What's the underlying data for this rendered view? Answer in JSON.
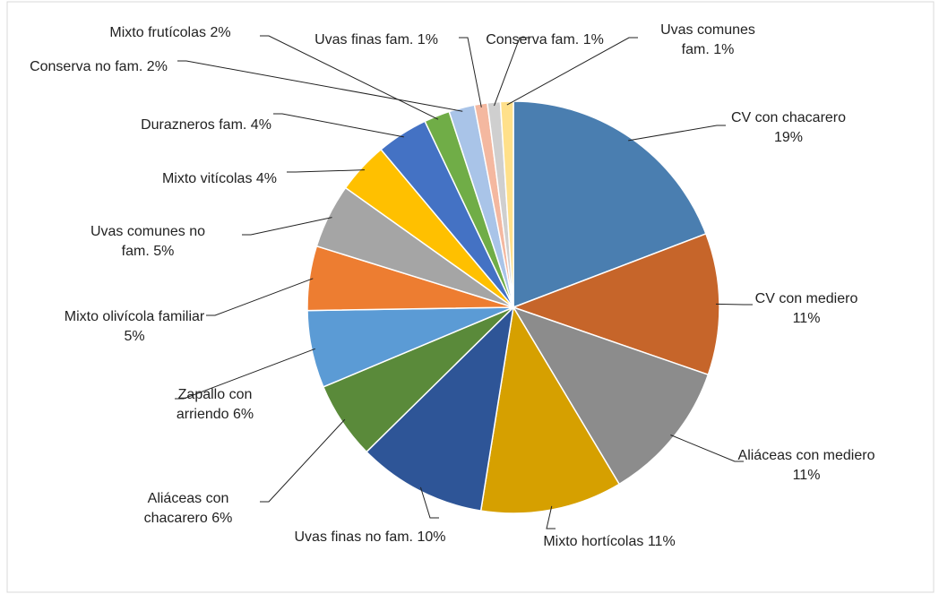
{
  "chart_data": {
    "type": "pie",
    "categories": [
      "CV con chacarero",
      "CV con mediero",
      "Aliáceas con mediero",
      "Mixto hortícolas",
      "Uvas finas no fam.",
      "Aliáceas con chacarero",
      "Zapallo con arriendo",
      "Mixto olivícola familiar",
      "Uvas comunes no fam.",
      "Mixto vitícolas",
      "Durazneros fam.",
      "Mixto frutícolas",
      "Conserva no fam.",
      "Uvas finas fam.",
      "Conserva fam.",
      "Uvas comunes fam."
    ],
    "values": [
      19,
      11,
      11,
      11,
      10,
      6,
      6,
      5,
      5,
      4,
      4,
      2,
      2,
      1,
      1,
      1
    ],
    "value_labels": [
      "19%",
      "11%",
      "11%",
      "11%",
      "10%",
      "6%",
      "6%",
      "5%",
      "5%",
      "4%",
      "4%",
      "2%",
      "2%",
      "1%",
      "1%",
      "1%"
    ],
    "colors": [
      "#4a7eb0",
      "#c6652a",
      "#8c8c8c",
      "#d6a000",
      "#2e5597",
      "#5a8a3a",
      "#5b9bd5",
      "#ed7d31",
      "#a5a5a5",
      "#ffc000",
      "#4472c4",
      "#70ad47",
      "#a9c4e8",
      "#f4b8a0",
      "#cfcfcf",
      "#ffe08a"
    ]
  }
}
